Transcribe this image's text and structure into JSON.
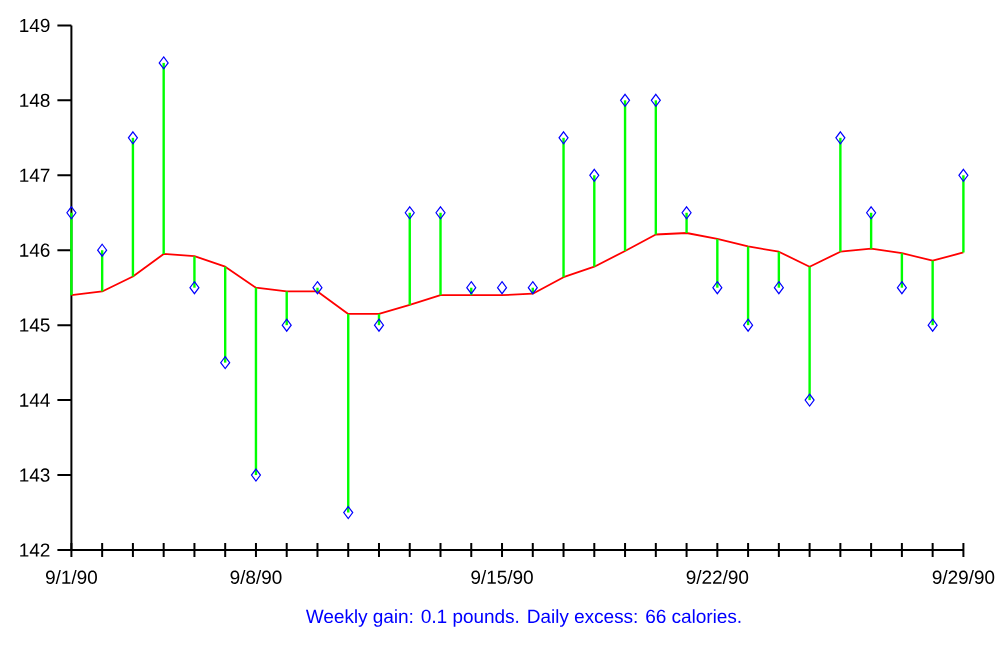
{
  "chart_data": {
    "type": "line",
    "categories": [
      "9/1/90",
      null,
      null,
      null,
      null,
      null,
      "9/8/90",
      null,
      null,
      null,
      null,
      null,
      null,
      null,
      "9/15/90",
      null,
      null,
      null,
      null,
      null,
      null,
      "9/22/90",
      null,
      null,
      null,
      null,
      null,
      null,
      null,
      "9/29/90"
    ],
    "series": [
      {
        "color": "#ff0000",
        "values": [
          145.4,
          145.45,
          145.65,
          145.95,
          145.92,
          145.78,
          145.5,
          145.45,
          145.45,
          145.15,
          145.15,
          145.27,
          145.4,
          145.4,
          145.4,
          145.42,
          145.64,
          145.78,
          145.99,
          146.21,
          146.23,
          146.15,
          146.05,
          145.98,
          145.78,
          145.98,
          146.02,
          145.96,
          145.86,
          145.97
        ]
      },
      {
        "type": "bar",
        "color": "#00ff00",
        "base": [
          145.4,
          145.45,
          145.65,
          145.95,
          145.5,
          144.5,
          143.0,
          145.0,
          145.45,
          142.5,
          145.0,
          145.27,
          145.4,
          145.4,
          null,
          145.42,
          145.64,
          145.78,
          145.99,
          146.21,
          146.23,
          145.5,
          145.0,
          145.5,
          144.0,
          145.98,
          146.02,
          145.5,
          145.0,
          145.97
        ],
        "values": [
          1.1,
          0.55,
          1.85,
          2.55,
          0.42,
          1.28,
          2.5,
          0.45,
          0.05,
          2.65,
          0.15,
          1.23,
          1.1,
          0.1,
          null,
          0.08,
          1.86,
          1.22,
          2.01,
          1.79,
          0.27,
          0.65,
          1.05,
          0.48,
          1.78,
          1.52,
          0.48,
          0.46,
          0.86,
          1.03
        ]
      },
      {
        "type": "scatter",
        "color": "#0000ff",
        "marker": "diamond",
        "values": [
          146.5,
          146.0,
          147.5,
          148.5,
          145.5,
          144.5,
          143.0,
          145.0,
          145.5,
          142.5,
          145.0,
          146.5,
          146.5,
          145.5,
          145.5,
          145.5,
          147.5,
          147.0,
          148.0,
          148.0,
          146.5,
          145.5,
          145.0,
          145.5,
          144.0,
          147.5,
          146.5,
          145.5,
          145.0,
          147.0
        ]
      }
    ],
    "ylim": [
      142,
      149
    ],
    "yticks": [
      142,
      143,
      144,
      145,
      146,
      147,
      148,
      149
    ],
    "annotations": [
      "Weekly gain: 0.1 pounds.  Daily excess: 66 calories."
    ]
  }
}
